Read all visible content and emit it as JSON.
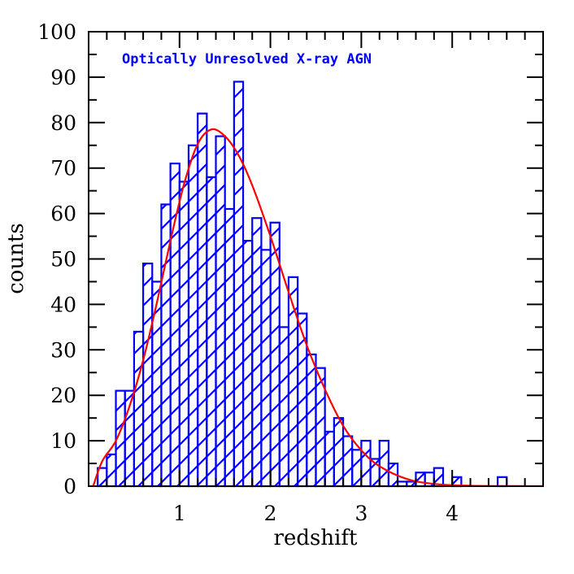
{
  "chart_data": {
    "type": "bar",
    "subtype": "histogram-with-fit",
    "title": "",
    "annotation": "Optically Unresolved X-ray AGN",
    "xlabel": "redshift",
    "ylabel": "counts",
    "xlim": [
      0,
      5
    ],
    "ylim": [
      0,
      100
    ],
    "x_ticks": [
      1,
      2,
      3,
      4
    ],
    "x_tick_labels": [
      "1",
      "2",
      "3",
      "4"
    ],
    "y_ticks": [
      0,
      10,
      20,
      30,
      40,
      50,
      60,
      70,
      80,
      90,
      100
    ],
    "y_tick_labels": [
      "0",
      "10",
      "20",
      "30",
      "40",
      "50",
      "60",
      "70",
      "80",
      "90",
      "100"
    ],
    "grid": false,
    "legend": null,
    "bin_width": 0.1,
    "bin_edges_start": 0.0,
    "series": [
      {
        "name": "Optically Unresolved X-ray AGN",
        "kind": "histogram",
        "style": "hatched",
        "color": "#0000ff",
        "values": [
          0,
          4,
          7,
          21,
          21,
          34,
          49,
          45,
          62,
          71,
          67,
          75,
          82,
          68,
          77,
          61,
          89,
          54,
          59,
          52,
          58,
          35,
          46,
          38,
          29,
          26,
          12,
          15,
          11,
          8,
          10,
          6,
          10,
          5,
          1,
          1,
          3,
          3,
          4,
          0,
          2,
          0,
          0,
          0,
          0,
          2,
          0,
          0,
          0,
          0
        ]
      },
      {
        "name": "fit",
        "kind": "line",
        "color": "#ff0000",
        "x": [
          0.05,
          0.15,
          0.3,
          0.45,
          0.6,
          0.75,
          0.9,
          1.05,
          1.2,
          1.35,
          1.5,
          1.65,
          1.8,
          2.0,
          2.2,
          2.4,
          2.6,
          2.8,
          3.0,
          3.2,
          3.5,
          3.8,
          4.2,
          5.0
        ],
        "y": [
          0.0,
          5.5,
          10.0,
          17.6,
          27.7,
          40.3,
          54.0,
          66.5,
          75.3,
          78.5,
          77.0,
          72.8,
          66.2,
          55.0,
          42.7,
          31.0,
          21.3,
          13.3,
          7.9,
          4.4,
          1.6,
          0.5,
          0.1,
          0.0
        ]
      }
    ]
  },
  "colors": {
    "histogram": "#0000ff",
    "fit": "#ff0000",
    "axes": "#000000",
    "annotation": "#0000ff"
  }
}
